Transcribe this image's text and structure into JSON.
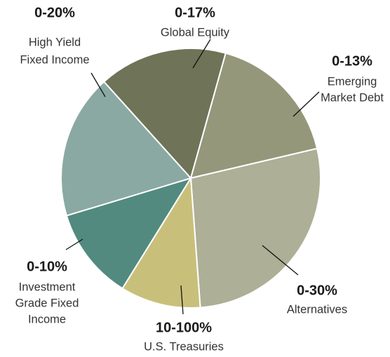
{
  "chart_data": {
    "type": "pie",
    "categories": [
      [
        "Global Equity"
      ],
      [
        "Emerging",
        "Market Debt"
      ],
      [
        "Alternatives"
      ],
      [
        "U.S. Treasuries"
      ],
      [
        "Investment",
        "Grade Fixed",
        "Income"
      ],
      [
        "High Yield",
        "Fixed Income"
      ]
    ],
    "ranges": [
      "0-17%",
      "0-13%",
      "0-30%",
      "10-100%",
      "0-10%",
      "0-20%"
    ],
    "values": [
      16,
      17,
      27.5,
      10,
      11.5,
      18
    ],
    "colors": [
      "#6f7358",
      "#95977a",
      "#adaf96",
      "#c8c07a",
      "#528a80",
      "#8aa9a2"
    ]
  }
}
